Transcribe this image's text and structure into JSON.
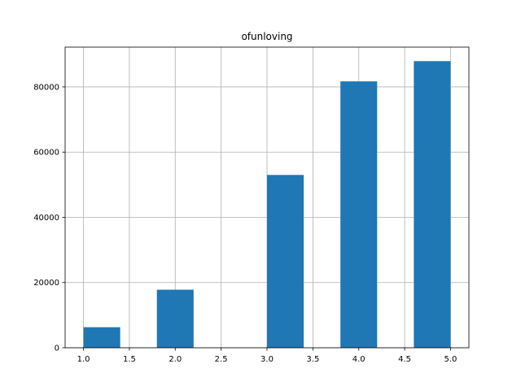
{
  "chart_data": {
    "type": "bar",
    "title": "ofunloving",
    "xlabel": "",
    "ylabel": "",
    "bins": [
      {
        "x0": 1.0,
        "x1": 1.4,
        "value": 6300
      },
      {
        "x0": 1.4,
        "x1": 1.8,
        "value": 0
      },
      {
        "x0": 1.8,
        "x1": 2.2,
        "value": 17800
      },
      {
        "x0": 2.2,
        "x1": 2.6,
        "value": 0
      },
      {
        "x0": 2.6,
        "x1": 3.0,
        "value": 0
      },
      {
        "x0": 3.0,
        "x1": 3.4,
        "value": 53000
      },
      {
        "x0": 3.4,
        "x1": 3.8,
        "value": 0
      },
      {
        "x0": 3.8,
        "x1": 4.2,
        "value": 81700
      },
      {
        "x0": 4.2,
        "x1": 4.6,
        "value": 0
      },
      {
        "x0": 4.6,
        "x1": 5.0,
        "value": 87900
      }
    ],
    "xlim": [
      0.8,
      5.2
    ],
    "ylim": [
      0,
      92200
    ],
    "xticks": [
      1.0,
      1.5,
      2.0,
      2.5,
      3.0,
      3.5,
      4.0,
      4.5,
      5.0
    ],
    "xtick_labels": [
      "1.0",
      "1.5",
      "2.0",
      "2.5",
      "3.0",
      "3.5",
      "4.0",
      "4.5",
      "5.0"
    ],
    "yticks": [
      0,
      20000,
      40000,
      60000,
      80000
    ],
    "ytick_labels": [
      "0",
      "20000",
      "40000",
      "60000",
      "80000"
    ],
    "grid": true,
    "bar_color": "#1f77b4",
    "grid_color": "#b0b0b0"
  }
}
